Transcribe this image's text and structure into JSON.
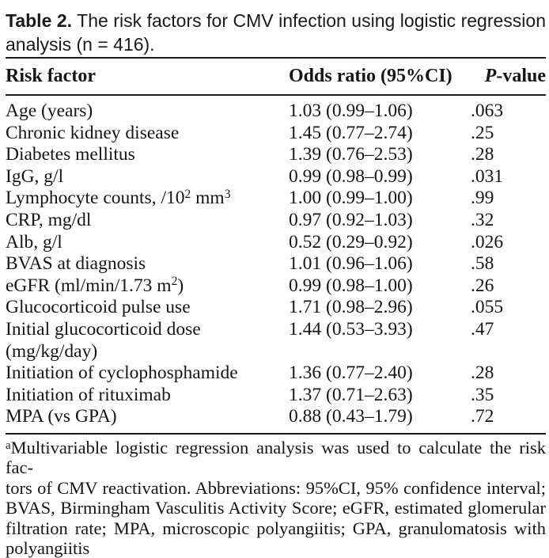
{
  "title": {
    "line1": "**Table 2.** The risk factors for CMV infection using logistic regression",
    "line2": "analysis (n = 416)."
  },
  "table": {
    "columns": [
      "Risk factor",
      "Odds ratio (95%CI)",
      "*P*-value"
    ],
    "rows": [
      {
        "factor": "Age (years)",
        "odds_ratio": "1.03 (0.99–1.06)",
        "p_value": ".063"
      },
      {
        "factor": "Chronic kidney disease",
        "odds_ratio": "1.45 (0.77–2.74)",
        "p_value": ".25"
      },
      {
        "factor": "Diabetes mellitus",
        "odds_ratio": "1.39 (0.76–2.53)",
        "p_value": ".28"
      },
      {
        "factor": "IgG, g/l",
        "odds_ratio": "0.99 (0.98–0.99)",
        "p_value": ".031"
      },
      {
        "factor": "Lymphocyte counts, /10^{2} mm^{3}",
        "odds_ratio": "1.00 (0.99–1.00)",
        "p_value": ".99"
      },
      {
        "factor": "CRP, mg/dl",
        "odds_ratio": "0.97 (0.92–1.03)",
        "p_value": ".32"
      },
      {
        "factor": "Alb, g/l",
        "odds_ratio": "0.52 (0.29–0.92)",
        "p_value": ".026"
      },
      {
        "factor": "BVAS at diagnosis",
        "odds_ratio": "1.01 (0.96–1.06)",
        "p_value": ".58"
      },
      {
        "factor": "eGFR (ml/min/1.73 m^{2})",
        "odds_ratio": "0.99 (0.98–1.00)",
        "p_value": ".26"
      },
      {
        "factor": "Glucocorticoid pulse use",
        "odds_ratio": "1.71 (0.98–2.96)",
        "p_value": ".055"
      },
      {
        "factor": "Initial glucocorticoid dose\n(mg/kg/day)",
        "odds_ratio": "1.44 (0.53–3.93)",
        "p_value": ".47"
      },
      {
        "factor": "Initiation of cyclophosphamide",
        "odds_ratio": "1.36 (0.77–2.40)",
        "p_value": ".28"
      },
      {
        "factor": "Initiation of rituximab",
        "odds_ratio": "1.37 (0.71–2.63)",
        "p_value": ".35"
      },
      {
        "factor": "MPA (vs GPA)",
        "odds_ratio": "0.88 (0.43–1.79)",
        "p_value": ".72"
      }
    ]
  },
  "footnote": {
    "lines": [
      "^{a}Multivariable logistic regression analysis was used to calculate the risk fac-",
      "tors of CMV reactivation. Abbreviations: 95%CI, 95% confidence interval;",
      "BVAS, Birmingham Vasculitis Activity Score; eGFR, estimated glomerular",
      "filtration rate; MPA, microscopic polyangiitis; GPA, granulomatosis with",
      "polyangiitis"
    ]
  }
}
